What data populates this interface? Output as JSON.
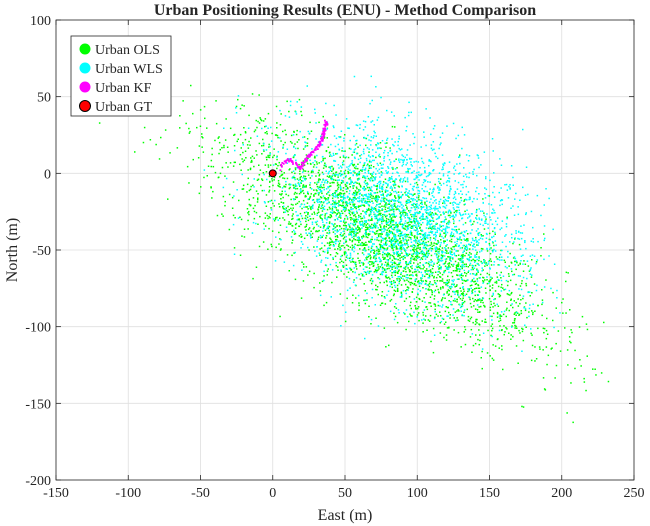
{
  "chart_data": {
    "type": "scatter",
    "title": "Urban Positioning Results (ENU) - Method Comparison",
    "xlabel": "East (m)",
    "ylabel": "North (m)",
    "xlim": [
      -150,
      250
    ],
    "ylim": [
      -200,
      100
    ],
    "xticks": [
      -150,
      -100,
      -50,
      0,
      50,
      100,
      150,
      200,
      250
    ],
    "yticks": [
      -200,
      -150,
      -100,
      -50,
      0,
      50,
      100
    ],
    "xtick_labels": [
      "-150",
      "-100",
      "-50",
      "0",
      "50",
      "100",
      "150",
      "200",
      "250"
    ],
    "ytick_labels": [
      "-200",
      "-150",
      "-100",
      "-50",
      "0",
      "50",
      "100"
    ],
    "grid": true,
    "legend_position": "top-left",
    "series": [
      {
        "name": "Urban OLS",
        "color": "#00ff00",
        "marker": "dot",
        "approx_count": 3000,
        "distribution": {
          "center": [
            75,
            -40
          ],
          "elongation_axis_direction": [
            1,
            -0.55
          ],
          "std_along_axis": 62,
          "std_across_axis": 20,
          "x_range": [
            -135,
            235
          ],
          "y_range": [
            -175,
            58
          ]
        }
      },
      {
        "name": "Urban WLS",
        "color": "#00ffff",
        "marker": "dot",
        "approx_count": 2400,
        "distribution": {
          "center": [
            92,
            -28
          ],
          "elongation_axis_direction": [
            1,
            -0.4
          ],
          "std_along_axis": 45,
          "std_across_axis": 25,
          "x_range": [
            -80,
            200
          ],
          "y_range": [
            -130,
            75
          ]
        }
      },
      {
        "name": "Urban KF",
        "color": "#ff00ff",
        "marker": "dot",
        "trajectory_points": [
          [
            5,
            3
          ],
          [
            8,
            7
          ],
          [
            11,
            9
          ],
          [
            14,
            8
          ],
          [
            17,
            5
          ],
          [
            19,
            3
          ],
          [
            20,
            5
          ],
          [
            22,
            8
          ],
          [
            24,
            10
          ],
          [
            26,
            12
          ],
          [
            28,
            14
          ],
          [
            30,
            16
          ],
          [
            32,
            18
          ],
          [
            33,
            20
          ],
          [
            34,
            22
          ],
          [
            35,
            24
          ],
          [
            35,
            26
          ],
          [
            36,
            28
          ],
          [
            36,
            30
          ],
          [
            37,
            32
          ],
          [
            37,
            34
          ]
        ]
      },
      {
        "name": "Urban GT",
        "color": "#ff0000",
        "marker": "circle",
        "x": [
          0
        ],
        "y": [
          0
        ]
      }
    ]
  }
}
